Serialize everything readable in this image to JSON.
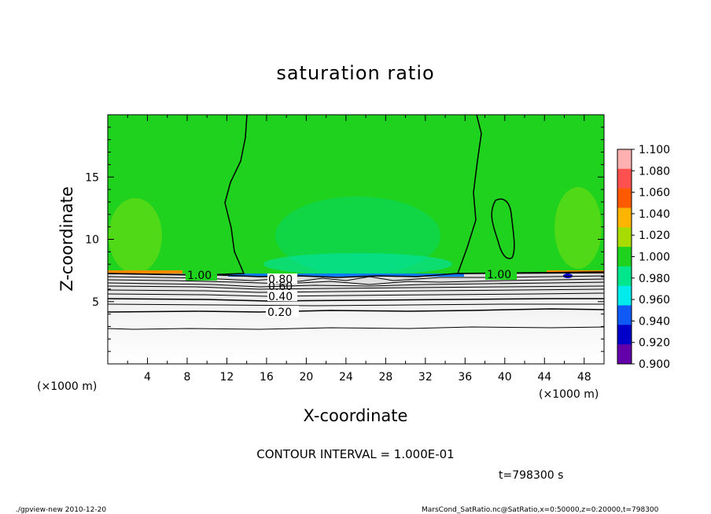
{
  "chart_data": {
    "type": "heatmap",
    "title": "saturation ratio",
    "xlabel": "X-coordinate",
    "ylabel": "Z-coordinate",
    "x_unit": "(×1000 m)",
    "y_unit": "(×1000 m)",
    "xlim": [
      0,
      50
    ],
    "ylim": [
      0,
      20
    ],
    "x_ticks": [
      "4",
      "8",
      "12",
      "16",
      "20",
      "24",
      "28",
      "32",
      "36",
      "40",
      "44",
      "48"
    ],
    "y_ticks": [
      "5",
      "10",
      "15"
    ],
    "colorbar": {
      "levels": [
        "1.100",
        "1.080",
        "1.060",
        "1.040",
        "1.020",
        "1.000",
        "0.980",
        "0.960",
        "0.940",
        "0.920",
        "0.900"
      ],
      "colors": [
        "#ffb0b0",
        "#ff5050",
        "#ff5a00",
        "#ffb400",
        "#a8dc00",
        "#1ed21e",
        "#00e68c",
        "#00ebeb",
        "#0f5af5",
        "#0000c8",
        "#6400aa"
      ]
    },
    "contour_labels": [
      "1.00",
      "0.80",
      "0.60",
      "0.40",
      "0.20",
      "1.00"
    ],
    "contour_interval": "CONTOUR INTERVAL = 1.000E-01",
    "time_label": "t=798300 s"
  },
  "footer": {
    "left": "./gpview-new  2010-12-20",
    "right": "MarsCond_SatRatio.nc@SatRatio,x=0:50000,z=0:20000,t=798300"
  }
}
